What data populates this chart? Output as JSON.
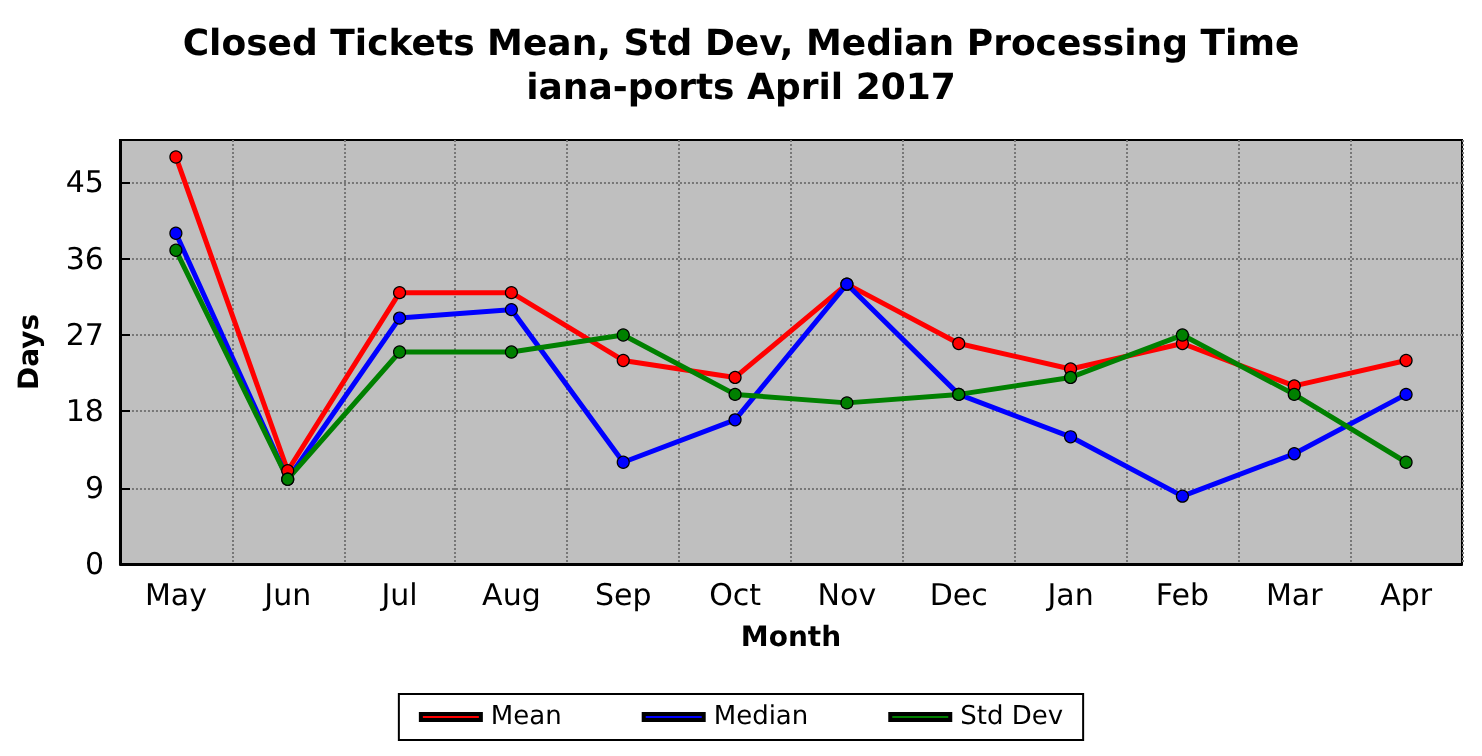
{
  "chart_data": {
    "type": "line",
    "title": "Closed Tickets Mean, Std Dev, Median Processing Time",
    "subtitle": "iana-ports April 2017",
    "xlabel": "Month",
    "ylabel": "Days",
    "categories": [
      "May",
      "Jun",
      "Jul",
      "Aug",
      "Sep",
      "Oct",
      "Nov",
      "Dec",
      "Jan",
      "Feb",
      "Mar",
      "Apr"
    ],
    "series": [
      {
        "name": "Mean",
        "color": "#ff0000",
        "values": [
          48,
          11,
          32,
          32,
          24,
          22,
          33,
          26,
          23,
          26,
          21,
          24
        ]
      },
      {
        "name": "Median",
        "color": "#0000ff",
        "values": [
          39,
          10,
          29,
          30,
          12,
          17,
          33,
          20,
          15,
          8,
          13,
          20
        ]
      },
      {
        "name": "Std Dev",
        "color": "#008000",
        "values": [
          37,
          10,
          25,
          25,
          27,
          20,
          19,
          20,
          22,
          27,
          20,
          12
        ]
      }
    ],
    "ylim": [
      0,
      50
    ],
    "yticks": [
      0,
      9,
      18,
      27,
      36,
      45
    ],
    "grid": true,
    "legend": "bottom",
    "marker": "circle",
    "line_style": "solid"
  }
}
